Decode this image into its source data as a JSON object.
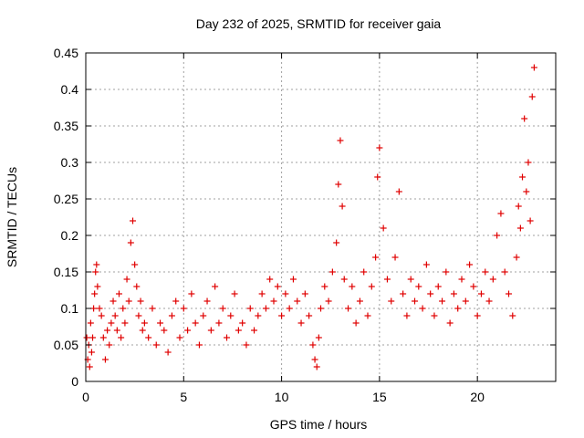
{
  "chart_data": {
    "type": "scatter",
    "title": "Day 232 of 2025, SRMTID for receiver gaia",
    "xlabel": "GPS time / hours",
    "ylabel": "SRMTID / TECUs",
    "xlim": [
      0,
      24
    ],
    "ylim": [
      0,
      0.45
    ],
    "grid": true,
    "marker": "plus",
    "marker_color": "#e00000",
    "xticks": [
      0,
      5,
      10,
      15,
      20
    ],
    "xtick_labels": [
      "0",
      "5",
      "10",
      "15",
      "20"
    ],
    "yticks": [
      0,
      0.05,
      0.1,
      0.15,
      0.2,
      0.25,
      0.3,
      0.35,
      0.4,
      0.45
    ],
    "ytick_labels": [
      "0",
      "0.05",
      "0.1",
      "0.15",
      "0.2",
      "0.25",
      "0.3",
      "0.35",
      "0.4",
      "0.45"
    ],
    "series": [
      {
        "name": "SRMTID",
        "x": [
          0.05,
          0.1,
          0.15,
          0.2,
          0.25,
          0.3,
          0.35,
          0.4,
          0.45,
          0.5,
          0.55,
          0.6,
          0.7,
          0.8,
          0.9,
          1.0,
          1.1,
          1.2,
          1.3,
          1.4,
          1.5,
          1.6,
          1.7,
          1.8,
          1.9,
          2.0,
          2.1,
          2.2,
          2.3,
          2.4,
          2.5,
          2.6,
          2.7,
          2.8,
          2.9,
          3.0,
          3.2,
          3.4,
          3.6,
          3.8,
          4.0,
          4.2,
          4.4,
          4.6,
          4.8,
          5.0,
          5.2,
          5.4,
          5.6,
          5.8,
          6.0,
          6.2,
          6.4,
          6.6,
          6.8,
          7.0,
          7.2,
          7.4,
          7.6,
          7.8,
          8.0,
          8.2,
          8.4,
          8.6,
          8.8,
          9.0,
          9.2,
          9.4,
          9.6,
          9.8,
          10.0,
          10.2,
          10.4,
          10.6,
          10.8,
          11.0,
          11.2,
          11.4,
          11.6,
          11.7,
          11.8,
          11.9,
          12.0,
          12.2,
          12.4,
          12.6,
          12.8,
          12.9,
          13.0,
          13.1,
          13.2,
          13.4,
          13.6,
          13.8,
          14.0,
          14.2,
          14.4,
          14.6,
          14.8,
          14.9,
          15.0,
          15.2,
          15.4,
          15.6,
          15.8,
          16.0,
          16.2,
          16.4,
          16.6,
          16.8,
          17.0,
          17.2,
          17.4,
          17.6,
          17.8,
          18.0,
          18.2,
          18.4,
          18.6,
          18.8,
          19.0,
          19.2,
          19.4,
          19.6,
          19.8,
          20.0,
          20.2,
          20.4,
          20.6,
          20.8,
          21.0,
          21.2,
          21.4,
          21.6,
          21.8,
          22.0,
          22.1,
          22.2,
          22.3,
          22.4,
          22.5,
          22.6,
          22.7,
          22.8,
          22.9
        ],
        "y": [
          0.06,
          0.03,
          0.05,
          0.02,
          0.08,
          0.04,
          0.06,
          0.1,
          0.12,
          0.15,
          0.16,
          0.13,
          0.1,
          0.09,
          0.06,
          0.03,
          0.07,
          0.05,
          0.08,
          0.11,
          0.09,
          0.07,
          0.12,
          0.06,
          0.1,
          0.08,
          0.14,
          0.11,
          0.19,
          0.22,
          0.16,
          0.13,
          0.09,
          0.11,
          0.07,
          0.08,
          0.06,
          0.1,
          0.05,
          0.08,
          0.07,
          0.04,
          0.09,
          0.11,
          0.06,
          0.1,
          0.07,
          0.12,
          0.08,
          0.05,
          0.09,
          0.11,
          0.07,
          0.13,
          0.08,
          0.1,
          0.06,
          0.09,
          0.12,
          0.07,
          0.08,
          0.05,
          0.1,
          0.07,
          0.09,
          0.12,
          0.1,
          0.14,
          0.11,
          0.13,
          0.09,
          0.12,
          0.1,
          0.14,
          0.11,
          0.08,
          0.12,
          0.09,
          0.05,
          0.03,
          0.02,
          0.06,
          0.1,
          0.13,
          0.11,
          0.15,
          0.19,
          0.27,
          0.33,
          0.24,
          0.14,
          0.1,
          0.13,
          0.08,
          0.11,
          0.15,
          0.09,
          0.13,
          0.17,
          0.28,
          0.32,
          0.21,
          0.14,
          0.11,
          0.17,
          0.26,
          0.12,
          0.09,
          0.14,
          0.11,
          0.13,
          0.1,
          0.16,
          0.12,
          0.09,
          0.13,
          0.11,
          0.15,
          0.08,
          0.12,
          0.1,
          0.14,
          0.11,
          0.16,
          0.13,
          0.09,
          0.12,
          0.15,
          0.11,
          0.14,
          0.2,
          0.23,
          0.15,
          0.12,
          0.09,
          0.17,
          0.24,
          0.21,
          0.28,
          0.36,
          0.26,
          0.3,
          0.22,
          0.39,
          0.43
        ]
      }
    ]
  }
}
